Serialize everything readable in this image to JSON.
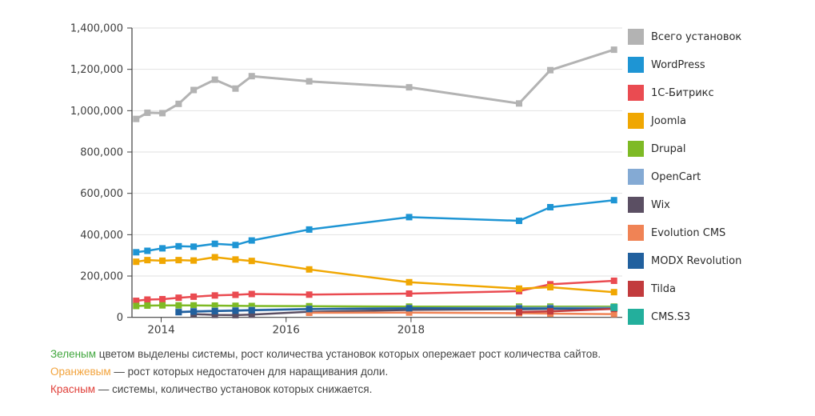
{
  "chart_data": {
    "type": "line",
    "title": "",
    "xlabel": "",
    "ylabel": "",
    "grid": true,
    "legend_position": "right",
    "x_years": [
      2013.6,
      2013.78,
      2014.02,
      2014.28,
      2014.52,
      2014.86,
      2015.19,
      2015.45,
      2016.37,
      2017.97,
      2019.73,
      2020.23,
      2021.25
    ],
    "x_axis": {
      "ticks": [
        {
          "label": "2014",
          "year": 2014
        },
        {
          "label": "2016",
          "year": 2016
        },
        {
          "label": "2018",
          "year": 2018
        }
      ]
    },
    "y_axis": {
      "min": 0,
      "max": 1400000,
      "step": 200000,
      "tick_labels": [
        "0",
        "200,000",
        "400,000",
        "600,000",
        "800,000",
        "1,000,000",
        "1,200,000",
        "1,400,000"
      ]
    },
    "series": [
      {
        "name": "Всего установок",
        "slug": "total",
        "color": "#b3b3b3",
        "width": 3,
        "values": [
          960000,
          990000,
          988000,
          1033000,
          1100000,
          1150000,
          1107000,
          1167000,
          1142000,
          1113000,
          1035000,
          1196000,
          1295000
        ]
      },
      {
        "name": "WordPress",
        "slug": "wordpress",
        "color": "#1e95d4",
        "width": 2.5,
        "values": [
          315000,
          322000,
          334000,
          344000,
          342000,
          356000,
          350000,
          372000,
          425000,
          485000,
          467000,
          533000,
          567000
        ]
      },
      {
        "name": "1С-Битрикс",
        "slug": "bitrix",
        "color": "#ea4b51",
        "width": 2.5,
        "values": [
          80000,
          86000,
          88000,
          95000,
          100000,
          106000,
          109000,
          113000,
          110000,
          115000,
          127000,
          160000,
          177000
        ]
      },
      {
        "name": "Joomla",
        "slug": "joomla",
        "color": "#f0a702",
        "width": 2.5,
        "values": [
          269000,
          277000,
          274000,
          277000,
          275000,
          291000,
          280000,
          273000,
          232000,
          170000,
          139000,
          146000,
          122000
        ]
      },
      {
        "name": "Drupal",
        "slug": "drupal",
        "color": "#7eba25",
        "width": 2.5,
        "values": [
          55000,
          57000,
          58000,
          58000,
          58000,
          57000,
          56000,
          55000,
          54000,
          52000,
          52000,
          52000,
          52000
        ]
      },
      {
        "name": "OpenCart",
        "slug": "opencart",
        "color": "#84aad4",
        "width": 2.5,
        "values": [
          null,
          null,
          null,
          27000,
          30000,
          32000,
          34000,
          36000,
          41000,
          45000,
          46000,
          46000,
          47000
        ]
      },
      {
        "name": "Wix",
        "slug": "wix",
        "color": "#5b4f63",
        "width": 2.5,
        "values": [
          null,
          null,
          null,
          null,
          16000,
          12000,
          11000,
          13000,
          27000,
          36000,
          39000,
          41000,
          43000
        ]
      },
      {
        "name": "Evolution CMS",
        "slug": "evolution",
        "color": "#f08355",
        "width": 2.5,
        "values": [
          null,
          null,
          null,
          null,
          null,
          null,
          null,
          null,
          22000,
          23000,
          20000,
          18000,
          16000
        ]
      },
      {
        "name": "MODX Revolution",
        "slug": "modx",
        "color": "#21609e",
        "width": 2.5,
        "values": [
          null,
          null,
          null,
          25000,
          28000,
          30000,
          32000,
          34000,
          40000,
          44000,
          43000,
          43000,
          42000
        ]
      },
      {
        "name": "Tilda",
        "slug": "tilda",
        "color": "#c23b3d",
        "width": 2.5,
        "values": [
          null,
          null,
          null,
          null,
          null,
          null,
          null,
          null,
          null,
          null,
          26000,
          29000,
          41000
        ]
      },
      {
        "name": "CMS.S3",
        "slug": "cmss3",
        "color": "#23af9c",
        "width": 2.5,
        "values": [
          null,
          null,
          null,
          null,
          null,
          null,
          null,
          null,
          null,
          null,
          null,
          null,
          48000
        ]
      }
    ]
  },
  "legend": {
    "items": [
      {
        "label": "Всего установок",
        "color": "#b3b3b3"
      },
      {
        "label": "WordPress",
        "color": "#1e95d4"
      },
      {
        "label": "1С-Битрикс",
        "color": "#ea4b51"
      },
      {
        "label": "Joomla",
        "color": "#f0a702"
      },
      {
        "label": "Drupal",
        "color": "#7eba25"
      },
      {
        "label": "OpenCart",
        "color": "#84aad4"
      },
      {
        "label": "Wix",
        "color": "#5b4f63"
      },
      {
        "label": "Evolution CMS",
        "color": "#f08355"
      },
      {
        "label": "MODX Revolution",
        "color": "#21609e"
      },
      {
        "label": "Tilda",
        "color": "#c23b3d"
      },
      {
        "label": "CMS.S3",
        "color": "#23af9c"
      }
    ]
  },
  "footnotes": [
    {
      "lead": "Зеленым",
      "lead_color": "#42a73f",
      "text": " цветом выделены системы, рост количества установок которых опережает рост количества сайтов."
    },
    {
      "lead": "Оранжевым",
      "lead_color": "#f2a33c",
      "text": " — рост которых недостаточен для наращивания доли."
    },
    {
      "lead": "Красным",
      "lead_color": "#e0403a",
      "text": " — системы, количество установок которых снижается."
    }
  ],
  "colors": {
    "grid": "#e2e2e2",
    "axis": "#404040",
    "axis_text": "#3f3f3f",
    "background": "#ffffff"
  }
}
